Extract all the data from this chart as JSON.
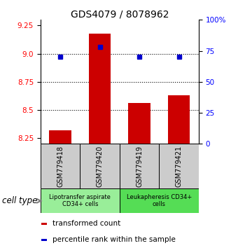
{
  "title": "GDS4079 / 8078962",
  "samples": [
    "GSM779418",
    "GSM779420",
    "GSM779419",
    "GSM779421"
  ],
  "bar_values": [
    8.32,
    9.18,
    8.56,
    8.63
  ],
  "bar_baseline": 8.2,
  "percentile_values": [
    70,
    78,
    70,
    70
  ],
  "left_ylim": [
    8.2,
    9.3
  ],
  "right_ylim": [
    0,
    100
  ],
  "left_yticks": [
    8.25,
    8.5,
    8.75,
    9.0,
    9.25
  ],
  "right_yticks": [
    0,
    25,
    50,
    75,
    100
  ],
  "right_yticklabels": [
    "0",
    "25",
    "50",
    "75",
    "100%"
  ],
  "dotted_lines": [
    9.0,
    8.75,
    8.5
  ],
  "bar_color": "#cc0000",
  "dot_color": "#0000cc",
  "cell_type_label": "cell type",
  "cell_groups": [
    {
      "label": "Lipotransfer aspirate\nCD34+ cells",
      "indices": [
        0,
        1
      ],
      "color": "#99ee99"
    },
    {
      "label": "Leukapheresis CD34+\ncells",
      "indices": [
        2,
        3
      ],
      "color": "#55dd55"
    }
  ],
  "legend_items": [
    {
      "color": "#cc0000",
      "label": "transformed count"
    },
    {
      "color": "#0000cc",
      "label": "percentile rank within the sample"
    }
  ],
  "bg_color": "#ffffff",
  "plot_bg": "#ffffff",
  "sample_box_color": "#cccccc",
  "title_fontsize": 10,
  "tick_fontsize": 7.5,
  "legend_fontsize": 7.5,
  "cell_type_fontsize": 8.5,
  "sample_fontsize": 7
}
